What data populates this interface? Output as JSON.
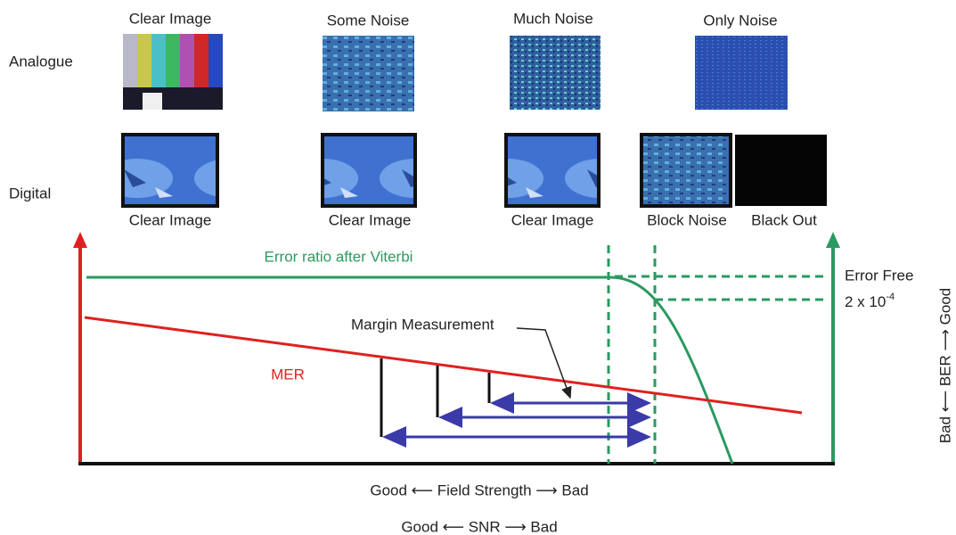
{
  "row_labels": {
    "analogue": "Analogue",
    "digital": "Digital"
  },
  "analogue_captions": [
    "Clear Image",
    "Some Noise",
    "Much Noise",
    "Only Noise"
  ],
  "digital_captions": [
    "Clear Image",
    "Clear Image",
    "Clear Image",
    "Block Noise",
    "Black Out"
  ],
  "curves": {
    "viterbi": "Error ratio after Viterbi",
    "mer": "MER",
    "margin": "Margin Measurement"
  },
  "thresholds": {
    "error_free": "Error Free",
    "ber_base": "2 x 10",
    "ber_exponent": "-4"
  },
  "axes": {
    "field_strength": "Good ⟵ Field Strength ⟶ Bad",
    "snr": "Good ⟵ SNR ⟶ Bad",
    "ber": "Bad ⟵ BER ⟶ Good"
  }
}
